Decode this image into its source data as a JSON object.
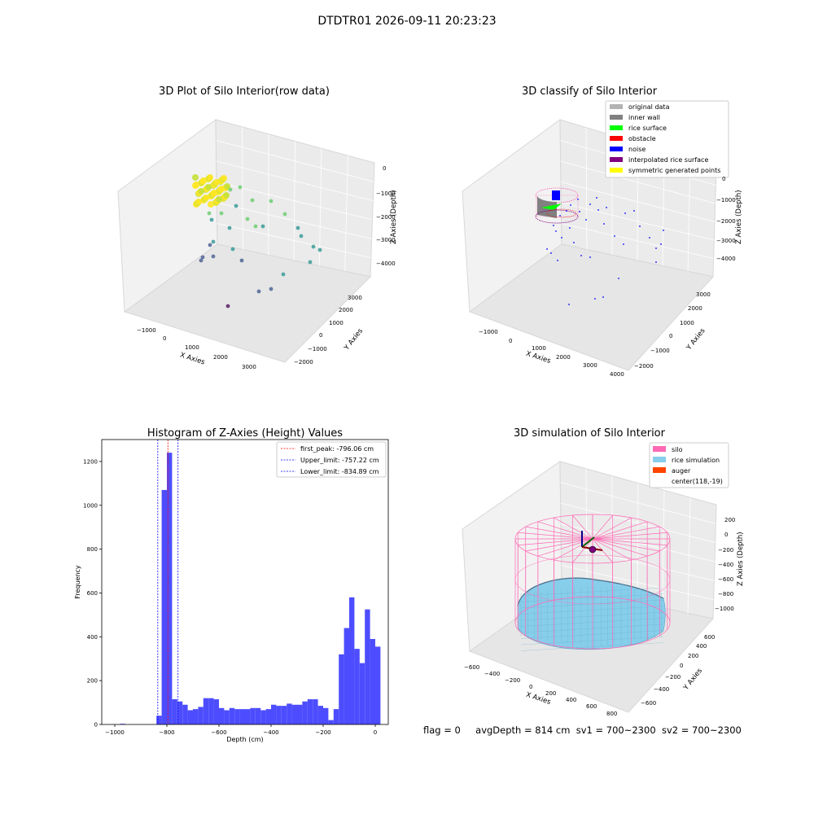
{
  "figure": {
    "title": "DTDTR01 2026-09-11 20:23:23",
    "footer": {
      "flag": "flag = 0",
      "avg_depth": "avgDepth = 814 cm",
      "sv1": "sv1 = 700~2300",
      "sv2": "sv2 = 700~2300"
    }
  },
  "chart_data": [
    {
      "type": "scatter",
      "title": "3D Plot of Silo Interior(row data)",
      "xlabel": "X Axies",
      "ylabel": "Y Axies",
      "zlabel": "Z Axies (Depth)",
      "x_ticks": [
        "−1000",
        "0",
        "1000",
        "2000",
        "3000"
      ],
      "y_ticks": [
        "−2000",
        "−1000",
        "0",
        "1000",
        "2000",
        "3000"
      ],
      "z_ticks": [
        "0",
        "−1000",
        "−2000",
        "−3000",
        "−4000"
      ],
      "colormap": "viridis",
      "colors": [
        "#440154",
        "#3b528b",
        "#21918c",
        "#5ec962",
        "#fde725"
      ]
    },
    {
      "type": "scatter",
      "title": "3D classify of Silo Interior",
      "xlabel": "X Axies",
      "ylabel": "Y Axies",
      "zlabel": "Z Axies (Depth)",
      "x_ticks": [
        "−1000",
        "0",
        "1000",
        "2000",
        "3000",
        "4000"
      ],
      "y_ticks": [
        "−2000",
        "−1000",
        "0",
        "1000",
        "2000",
        "3000"
      ],
      "z_ticks": [
        "0",
        "−1000",
        "−2000",
        "−3000",
        "−4000"
      ],
      "legend_position": "top-right",
      "legend": [
        {
          "label": "original data",
          "color": "#b3b3b3"
        },
        {
          "label": "inner wall",
          "color": "#808080"
        },
        {
          "label": "rice surface",
          "color": "#00ff00"
        },
        {
          "label": "obstacle",
          "color": "#ff0000"
        },
        {
          "label": "noise",
          "color": "#0000ff"
        },
        {
          "label": "interpolated rice surface",
          "color": "#800080"
        },
        {
          "label": "symmetric generated points",
          "color": "#ffff00"
        }
      ]
    },
    {
      "type": "bar",
      "title": "Histogram of Z-Axies (Height) Values",
      "xlabel": "Depth (cm)",
      "ylabel": "Frequency",
      "xlim": [
        -1000,
        0
      ],
      "ylim": [
        0,
        1300
      ],
      "x_ticks": [
        -1000,
        -800,
        -600,
        -400,
        -200,
        0
      ],
      "x_tick_labels": [
        "−1000",
        "−800",
        "−600",
        "−400",
        "−200",
        "0"
      ],
      "y_ticks": [
        0,
        200,
        400,
        600,
        800,
        1000,
        1200
      ],
      "bar_color": "#4d4dff",
      "bin_width": 20,
      "bins": [
        {
          "x": -970,
          "value": 3
        },
        {
          "x": -830,
          "value": 40
        },
        {
          "x": -810,
          "value": 1070
        },
        {
          "x": -790,
          "value": 1240
        },
        {
          "x": -770,
          "value": 115
        },
        {
          "x": -750,
          "value": 105
        },
        {
          "x": -730,
          "value": 90
        },
        {
          "x": -710,
          "value": 65
        },
        {
          "x": -690,
          "value": 70
        },
        {
          "x": -670,
          "value": 80
        },
        {
          "x": -650,
          "value": 120
        },
        {
          "x": -630,
          "value": 120
        },
        {
          "x": -610,
          "value": 115
        },
        {
          "x": -590,
          "value": 75
        },
        {
          "x": -570,
          "value": 65
        },
        {
          "x": -550,
          "value": 75
        },
        {
          "x": -530,
          "value": 70
        },
        {
          "x": -510,
          "value": 70
        },
        {
          "x": -490,
          "value": 70
        },
        {
          "x": -470,
          "value": 75
        },
        {
          "x": -450,
          "value": 75
        },
        {
          "x": -430,
          "value": 65
        },
        {
          "x": -410,
          "value": 70
        },
        {
          "x": -390,
          "value": 90
        },
        {
          "x": -370,
          "value": 85
        },
        {
          "x": -350,
          "value": 85
        },
        {
          "x": -330,
          "value": 95
        },
        {
          "x": -310,
          "value": 90
        },
        {
          "x": -290,
          "value": 90
        },
        {
          "x": -270,
          "value": 105
        },
        {
          "x": -250,
          "value": 115
        },
        {
          "x": -230,
          "value": 115
        },
        {
          "x": -210,
          "value": 85
        },
        {
          "x": -190,
          "value": 75
        },
        {
          "x": -170,
          "value": 20
        },
        {
          "x": -150,
          "value": 70
        },
        {
          "x": -130,
          "value": 320
        },
        {
          "x": -110,
          "value": 440
        },
        {
          "x": -90,
          "value": 580
        },
        {
          "x": -70,
          "value": 345
        },
        {
          "x": -50,
          "value": 280
        },
        {
          "x": -30,
          "value": 525
        },
        {
          "x": -10,
          "value": 390
        },
        {
          "x": 10,
          "value": 355
        }
      ],
      "vlines": [
        {
          "label": "first_peak: -796.06 cm",
          "x": -796.06,
          "color": "#ff0000"
        },
        {
          "label": "Upper_limit: -757.22 cm",
          "x": -757.22,
          "color": "#0000ff"
        },
        {
          "label": "Lower_limit: -834.89 cm",
          "x": -834.89,
          "color": "#0000ff"
        }
      ],
      "legend_position": "top-right"
    },
    {
      "type": "surface",
      "title": "3D simulation of Silo Interior",
      "xlabel": "X Axies",
      "ylabel": "Y Axies",
      "zlabel": "Z Axies (Depth)",
      "x_ticks": [
        "−600",
        "−400",
        "−200",
        "0",
        "200",
        "400",
        "600",
        "800"
      ],
      "y_ticks": [
        "−600",
        "−400",
        "−200",
        "0",
        "200",
        "400",
        "600"
      ],
      "z_ticks": [
        "200",
        "0",
        "−200",
        "−400",
        "−600",
        "−800",
        "−1000"
      ],
      "legend_position": "top-right",
      "legend": [
        {
          "label": "silo",
          "color": "#ff69b4"
        },
        {
          "label": "rice simulation",
          "color": "#87ceeb"
        },
        {
          "label": "auger",
          "color": "#ff4500"
        },
        {
          "label": "center(118,-19)",
          "color": ""
        }
      ]
    }
  ]
}
